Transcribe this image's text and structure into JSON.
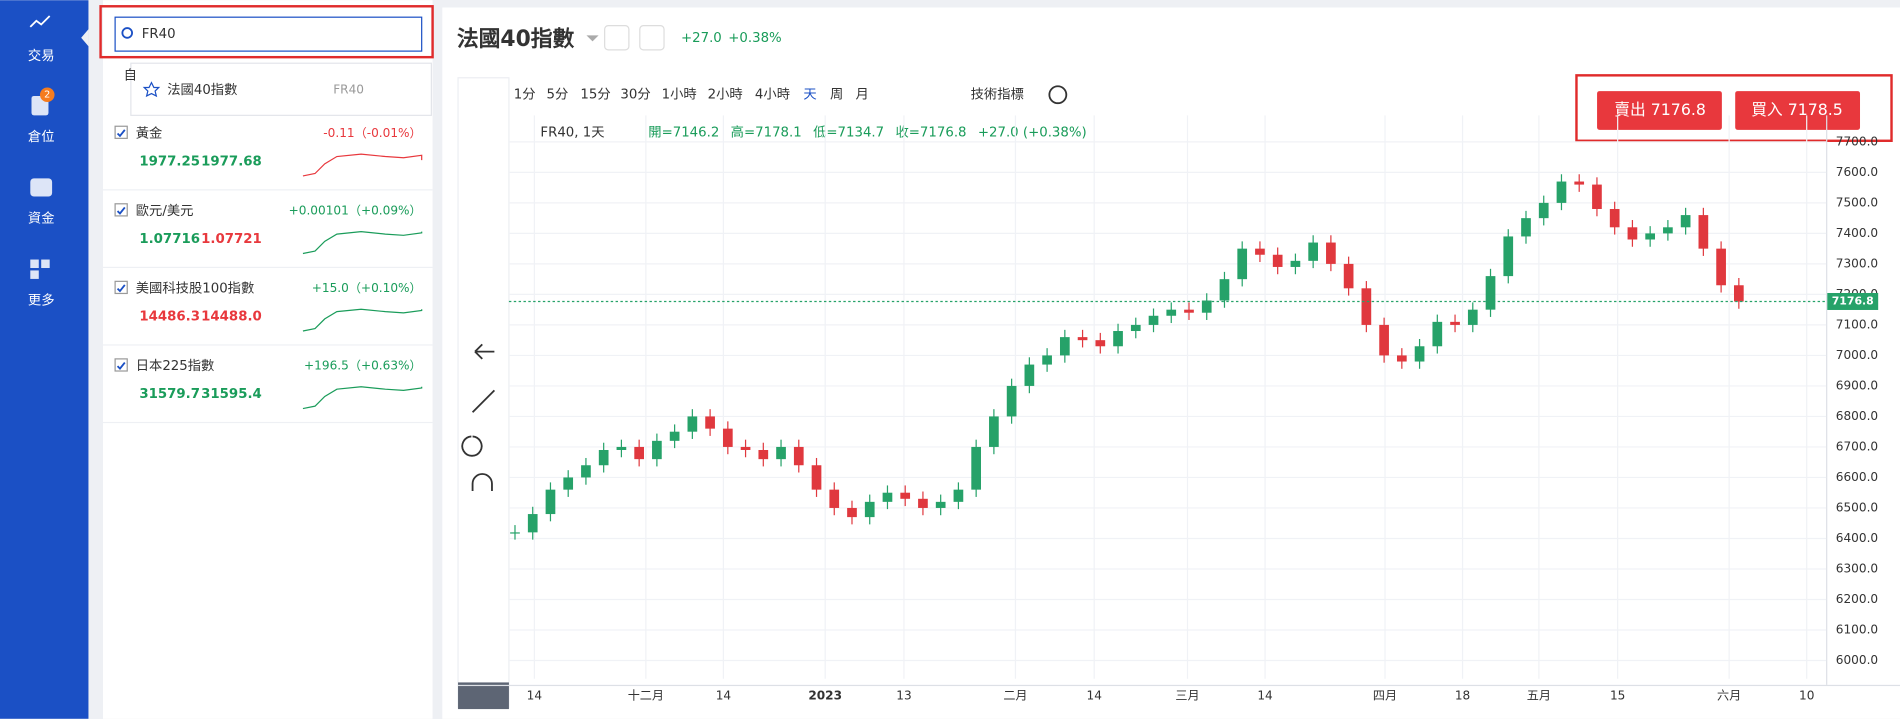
{
  "sidebar": {
    "items": [
      {
        "label": "交易"
      },
      {
        "label": "倉位",
        "badge": "2"
      },
      {
        "label": "資金"
      },
      {
        "label": "更多"
      }
    ]
  },
  "search": {
    "query": "FR40",
    "hidden_tab": "自",
    "result": {
      "name": "法國40指數",
      "symbol": "FR40"
    }
  },
  "watchlist": [
    {
      "name": "黃金",
      "change": "-0.11（-0.01%）",
      "change_color": "#e8383d",
      "bid": "1977.25",
      "bid_color": "#1a9c5a",
      "ask": "1977.68",
      "ask_color": "#1a9c5a"
    },
    {
      "name": "歐元/美元",
      "change": "+0.00101（+0.09%）",
      "change_color": "#1a9c5a",
      "bid": "1.07716",
      "bid_color": "#1a9c5a",
      "ask": "1.07721",
      "ask_color": "#e8383d"
    },
    {
      "name": "美國科技股100指數",
      "change": "+15.0（+0.10%）",
      "change_color": "#1a9c5a",
      "bid": "14486.3",
      "bid_color": "#e8383d",
      "ask": "14488.0",
      "ask_color": "#e8383d"
    },
    {
      "name": "日本225指數",
      "change": "+196.5（+0.63%）",
      "change_color": "#1a9c5a",
      "bid": "31579.7",
      "bid_color": "#1a9c5a",
      "ask": "31595.4",
      "ask_color": "#1a9c5a"
    }
  ],
  "instrument": {
    "title": "法國40指數",
    "change": "+27.0",
    "percent": "+0.38%"
  },
  "timeframes": [
    "1分",
    "5分",
    "15分",
    "30分",
    "1小時",
    "2小時",
    "4小時",
    "天",
    "周",
    "月"
  ],
  "indicators": "技術指標",
  "legend": {
    "symbol": "FR40, 1天",
    "open": "開=7146.2",
    "high": "高=7178.1",
    "low": "低=7134.7",
    "close": "收=7176.8",
    "change": "+27.0 (+0.38%)"
  },
  "trade": {
    "sell": "賣出 7176.8",
    "buy": "買入 7178.5"
  },
  "chart_data": {
    "type": "candlestick",
    "closes": [
      6420,
      6480,
      6560,
      6600,
      6640,
      6690,
      6700,
      6660,
      6720,
      6750,
      6800,
      6760,
      6700,
      6690,
      6660,
      6700,
      6640,
      6560,
      6500,
      6470,
      6520,
      6550,
      6530,
      6500,
      6520,
      6560,
      6700,
      6800,
      6900,
      6970,
      7000,
      7060,
      7050,
      7030,
      7080,
      7100,
      7130,
      7150,
      7140,
      7180,
      7250,
      7350,
      7330,
      7290,
      7310,
      7370,
      7300,
      7220,
      7100,
      7000,
      6980,
      7030,
      7110,
      7100,
      7150,
      7260,
      7390,
      7450,
      7500,
      7570,
      7560,
      7480,
      7420,
      7380,
      7400,
      7420,
      7460,
      7350,
      7230,
      7176.8
    ],
    "up_color": "#26a269",
    "down_color": "#e0383e",
    "current_price": 7176.8,
    "ylim": [
      5940,
      7787
    ],
    "yticks": [
      {
        "value": 6000,
        "label": "6000.0"
      },
      {
        "value": 6100,
        "label": "6100.0"
      },
      {
        "value": 6200,
        "label": "6200.0"
      },
      {
        "value": 6300,
        "label": "6300.0"
      },
      {
        "value": 6400,
        "label": "6400.0"
      },
      {
        "value": 6500,
        "label": "6500.0"
      },
      {
        "value": 6600,
        "label": "6600.0"
      },
      {
        "value": 6700,
        "label": "6700.0"
      },
      {
        "value": 6800,
        "label": "6800.0"
      },
      {
        "value": 6900,
        "label": "6900.0"
      },
      {
        "value": 7000,
        "label": "7000.0"
      },
      {
        "value": 7100,
        "label": "7100.0"
      },
      {
        "value": 7200,
        "label": "7200.0"
      },
      {
        "value": 7300,
        "label": "7300.0"
      },
      {
        "value": 7400,
        "label": "7400.0"
      },
      {
        "value": 7500,
        "label": "7500.0"
      },
      {
        "value": 7600,
        "label": "7600.0"
      },
      {
        "value": 7700,
        "label": "7700.0"
      }
    ],
    "categories": [
      "14",
      "十二月",
      "14",
      "2023",
      "13",
      "二月",
      "14",
      "三月",
      "14",
      "四月",
      "18",
      "五月",
      "15",
      "六月",
      "10"
    ]
  }
}
